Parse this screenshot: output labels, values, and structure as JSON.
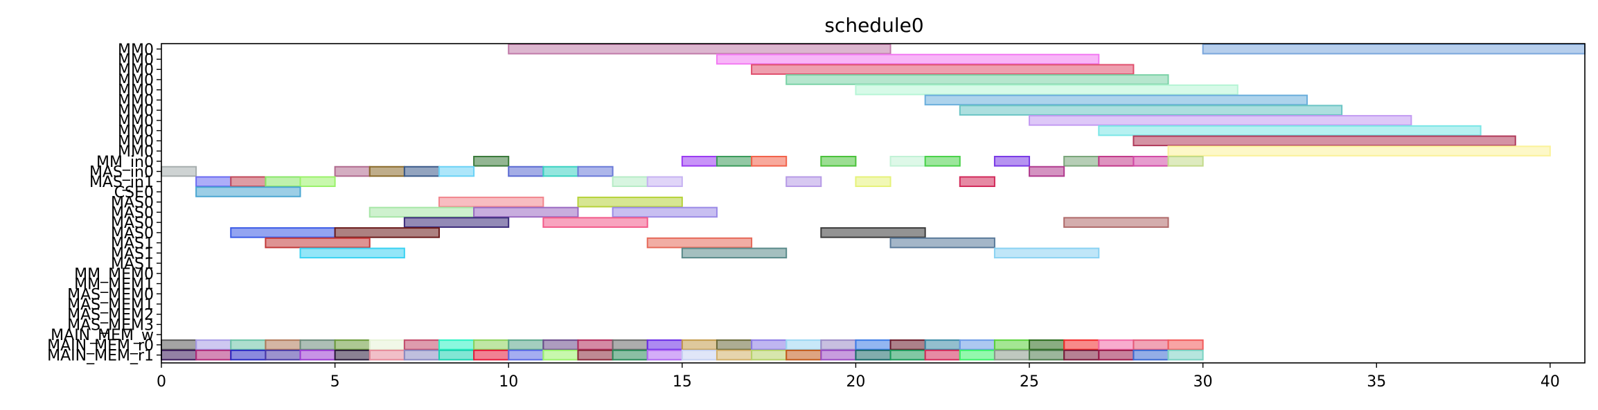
{
  "chart_data": {
    "type": "gantt",
    "title": "schedule0",
    "xlabel": "",
    "ylabel": "",
    "xlim": [
      0,
      41
    ],
    "x_ticks": [
      0,
      5,
      10,
      15,
      20,
      25,
      30,
      35,
      40
    ],
    "grid": false,
    "rows": [
      "MM0",
      "MM0",
      "MM0",
      "MM0",
      "MM0",
      "MM0",
      "MM0",
      "MM0",
      "MM0",
      "MM0",
      "MM0",
      "MM_in0",
      "MAS_in0",
      "MAS_in1",
      "CSE0",
      "MAS0",
      "MAS0",
      "MAS0",
      "MAS0",
      "MAS1",
      "MAS1",
      "MAS1",
      "MM_MEM0",
      "MM_MEM1",
      "MAS_MEM0",
      "MAS_MEM1",
      "MAS_MEM2",
      "MAS_MEM3",
      "MAIN_MEM_w",
      "MAIN_MEM_r0",
      "MAIN_MEM_r1"
    ],
    "tasks": [
      {
        "row": 0,
        "start": 10,
        "end": 21,
        "color": "#c07aa8"
      },
      {
        "row": 0,
        "start": 30,
        "end": 41,
        "color": "#7aa6dc"
      },
      {
        "row": 1,
        "start": 16,
        "end": 27,
        "color": "#f27af2"
      },
      {
        "row": 2,
        "start": 17,
        "end": 28,
        "color": "#e0506e"
      },
      {
        "row": 3,
        "start": 18,
        "end": 29,
        "color": "#7ad2a6"
      },
      {
        "row": 4,
        "start": 20,
        "end": 31,
        "color": "#b6f5d5"
      },
      {
        "row": 5,
        "start": 22,
        "end": 33,
        "color": "#6aaedc"
      },
      {
        "row": 6,
        "start": 23,
        "end": 34,
        "color": "#6ac4c4"
      },
      {
        "row": 7,
        "start": 25,
        "end": 36,
        "color": "#c39af2"
      },
      {
        "row": 8,
        "start": 27,
        "end": 38,
        "color": "#7ae6e6"
      },
      {
        "row": 9,
        "start": 28,
        "end": 39,
        "color": "#b03a5a"
      },
      {
        "row": 10,
        "start": 29,
        "end": 40,
        "color": "#fbf29a"
      },
      {
        "row": 11,
        "start": 9,
        "end": 10,
        "color": "#3a7a3a"
      },
      {
        "row": 11,
        "start": 15,
        "end": 16,
        "color": "#9a3af2"
      },
      {
        "row": 11,
        "start": 16,
        "end": 17,
        "color": "#3a9a5a"
      },
      {
        "row": 11,
        "start": 17,
        "end": 18,
        "color": "#f2624a"
      },
      {
        "row": 11,
        "start": 19,
        "end": 20,
        "color": "#4ac23a"
      },
      {
        "row": 11,
        "start": 21,
        "end": 22,
        "color": "#c2f2d6"
      },
      {
        "row": 11,
        "start": 22,
        "end": 23,
        "color": "#4ad24a"
      },
      {
        "row": 11,
        "start": 24,
        "end": 25,
        "color": "#7a3ae6"
      },
      {
        "row": 11,
        "start": 26,
        "end": 27,
        "color": "#7aa67a"
      },
      {
        "row": 11,
        "start": 27,
        "end": 28,
        "color": "#c23a8a"
      },
      {
        "row": 11,
        "start": 28,
        "end": 29,
        "color": "#d24aa6"
      },
      {
        "row": 11,
        "start": 29,
        "end": 30,
        "color": "#c2da8a"
      },
      {
        "row": 12,
        "start": 0,
        "end": 1,
        "color": "#a6aeae"
      },
      {
        "row": 12,
        "start": 5,
        "end": 6,
        "color": "#b06a8e"
      },
      {
        "row": 12,
        "start": 6,
        "end": 7,
        "color": "#8a6a2a"
      },
      {
        "row": 12,
        "start": 7,
        "end": 8,
        "color": "#3a5a8a"
      },
      {
        "row": 12,
        "start": 8,
        "end": 9,
        "color": "#6ad2f6"
      },
      {
        "row": 12,
        "start": 10,
        "end": 11,
        "color": "#5a6ad2"
      },
      {
        "row": 12,
        "start": 11,
        "end": 12,
        "color": "#3ad2c2"
      },
      {
        "row": 12,
        "start": 12,
        "end": 13,
        "color": "#6a7ad8"
      },
      {
        "row": 12,
        "start": 25,
        "end": 26,
        "color": "#b03a8e"
      },
      {
        "row": 13,
        "start": 1,
        "end": 2,
        "color": "#6a6af2"
      },
      {
        "row": 13,
        "start": 2,
        "end": 3,
        "color": "#c24a5a"
      },
      {
        "row": 13,
        "start": 3,
        "end": 4,
        "color": "#8ae66a"
      },
      {
        "row": 13,
        "start": 4,
        "end": 5,
        "color": "#9af26a"
      },
      {
        "row": 13,
        "start": 13,
        "end": 14,
        "color": "#b6ecc6"
      },
      {
        "row": 13,
        "start": 14,
        "end": 15,
        "color": "#c6b2f2"
      },
      {
        "row": 13,
        "start": 18,
        "end": 19,
        "color": "#b69ae6"
      },
      {
        "row": 13,
        "start": 20,
        "end": 21,
        "color": "#e6f27a"
      },
      {
        "row": 13,
        "start": 23,
        "end": 24,
        "color": "#d22a5a"
      },
      {
        "row": 14,
        "start": 1,
        "end": 4,
        "color": "#4aa6d2"
      },
      {
        "row": 15,
        "start": 8,
        "end": 11,
        "color": "#f2868e"
      },
      {
        "row": 15,
        "start": 12,
        "end": 15,
        "color": "#b6d23a"
      },
      {
        "row": 16,
        "start": 6,
        "end": 9,
        "color": "#a6e6a6"
      },
      {
        "row": 16,
        "start": 9,
        "end": 12,
        "color": "#9a6ac2"
      },
      {
        "row": 16,
        "start": 13,
        "end": 16,
        "color": "#9a8ae6"
      },
      {
        "row": 17,
        "start": 7,
        "end": 10,
        "color": "#3a2a7a"
      },
      {
        "row": 17,
        "start": 11,
        "end": 14,
        "color": "#f25a8a"
      },
      {
        "row": 17,
        "start": 26,
        "end": 29,
        "color": "#b06a6a"
      },
      {
        "row": 18,
        "start": 2,
        "end": 5,
        "color": "#3a5ae6"
      },
      {
        "row": 18,
        "start": 5,
        "end": 8,
        "color": "#6a1a1a"
      },
      {
        "row": 18,
        "start": 19,
        "end": 22,
        "color": "#3a3a3a"
      },
      {
        "row": 19,
        "start": 3,
        "end": 6,
        "color": "#c23a3a"
      },
      {
        "row": 19,
        "start": 14,
        "end": 17,
        "color": "#e66a5a"
      },
      {
        "row": 19,
        "start": 21,
        "end": 24,
        "color": "#5a7a9a"
      },
      {
        "row": 20,
        "start": 4,
        "end": 7,
        "color": "#3ad2f2"
      },
      {
        "row": 20,
        "start": 15,
        "end": 18,
        "color": "#5a8a8a"
      },
      {
        "row": 20,
        "start": 24,
        "end": 27,
        "color": "#8ad2f2"
      },
      {
        "row": 29,
        "start": 0,
        "end": 1,
        "color": "#5a5a5a"
      },
      {
        "row": 29,
        "start": 1,
        "end": 2,
        "color": "#a69ae6"
      },
      {
        "row": 29,
        "start": 2,
        "end": 3,
        "color": "#6ac2a6"
      },
      {
        "row": 29,
        "start": 3,
        "end": 4,
        "color": "#b07a5a"
      },
      {
        "row": 29,
        "start": 4,
        "end": 5,
        "color": "#6a8a7a"
      },
      {
        "row": 29,
        "start": 5,
        "end": 6,
        "color": "#6a9a3a"
      },
      {
        "row": 29,
        "start": 6,
        "end": 7,
        "color": "#e6f2d6"
      },
      {
        "row": 29,
        "start": 7,
        "end": 8,
        "color": "#c24a6a"
      },
      {
        "row": 29,
        "start": 8,
        "end": 9,
        "color": "#2af2c2"
      },
      {
        "row": 29,
        "start": 9,
        "end": 10,
        "color": "#8ad25a"
      },
      {
        "row": 29,
        "start": 10,
        "end": 11,
        "color": "#5aa68a"
      },
      {
        "row": 29,
        "start": 11,
        "end": 12,
        "color": "#6a4a8a"
      },
      {
        "row": 29,
        "start": 12,
        "end": 13,
        "color": "#b02a5a"
      },
      {
        "row": 29,
        "start": 13,
        "end": 14,
        "color": "#6a6a6a"
      },
      {
        "row": 29,
        "start": 14,
        "end": 15,
        "color": "#6a2ae6"
      },
      {
        "row": 29,
        "start": 15,
        "end": 16,
        "color": "#c29a4a"
      },
      {
        "row": 29,
        "start": 16,
        "end": 17,
        "color": "#6a6a3a"
      },
      {
        "row": 29,
        "start": 17,
        "end": 18,
        "color": "#8a7ae6"
      },
      {
        "row": 29,
        "start": 18,
        "end": 19,
        "color": "#9ad6f2"
      },
      {
        "row": 29,
        "start": 19,
        "end": 20,
        "color": "#9a8ac6"
      },
      {
        "row": 29,
        "start": 20,
        "end": 21,
        "color": "#3a7ae6"
      },
      {
        "row": 29,
        "start": 21,
        "end": 22,
        "color": "#6a1a2a"
      },
      {
        "row": 29,
        "start": 22,
        "end": 23,
        "color": "#3a8aa6"
      },
      {
        "row": 29,
        "start": 23,
        "end": 24,
        "color": "#6a9ae6"
      },
      {
        "row": 29,
        "start": 24,
        "end": 25,
        "color": "#5ad23a"
      },
      {
        "row": 29,
        "start": 25,
        "end": 26,
        "color": "#2a6a1a"
      },
      {
        "row": 29,
        "start": 26,
        "end": 27,
        "color": "#f22a2a"
      },
      {
        "row": 29,
        "start": 27,
        "end": 28,
        "color": "#f26aa6"
      },
      {
        "row": 29,
        "start": 28,
        "end": 29,
        "color": "#e65a7a"
      },
      {
        "row": 29,
        "start": 29,
        "end": 30,
        "color": "#f25a5a"
      },
      {
        "row": 30,
        "start": 0,
        "end": 1,
        "color": "#3a1a5a"
      },
      {
        "row": 30,
        "start": 1,
        "end": 2,
        "color": "#b02a7a"
      },
      {
        "row": 30,
        "start": 2,
        "end": 3,
        "color": "#2a2ac2"
      },
      {
        "row": 30,
        "start": 3,
        "end": 4,
        "color": "#4a3aa6"
      },
      {
        "row": 30,
        "start": 4,
        "end": 5,
        "color": "#9a3ad2"
      },
      {
        "row": 30,
        "start": 5,
        "end": 6,
        "color": "#2a1a3a"
      },
      {
        "row": 30,
        "start": 6,
        "end": 7,
        "color": "#e68a9a"
      },
      {
        "row": 30,
        "start": 7,
        "end": 8,
        "color": "#8a8ac2"
      },
      {
        "row": 30,
        "start": 8,
        "end": 9,
        "color": "#1ad2b0"
      },
      {
        "row": 30,
        "start": 9,
        "end": 10,
        "color": "#e61a3a"
      },
      {
        "row": 30,
        "start": 10,
        "end": 11,
        "color": "#5a6ae6"
      },
      {
        "row": 30,
        "start": 11,
        "end": 12,
        "color": "#9af26a"
      },
      {
        "row": 30,
        "start": 12,
        "end": 13,
        "color": "#8a2a3a"
      },
      {
        "row": 30,
        "start": 13,
        "end": 14,
        "color": "#2a8a5a"
      },
      {
        "row": 30,
        "start": 14,
        "end": 15,
        "color": "#b06af2"
      },
      {
        "row": 30,
        "start": 15,
        "end": 16,
        "color": "#c6d2f2"
      },
      {
        "row": 30,
        "start": 16,
        "end": 17,
        "color": "#d2b06a"
      },
      {
        "row": 30,
        "start": 17,
        "end": 18,
        "color": "#b6d26a"
      },
      {
        "row": 30,
        "start": 18,
        "end": 19,
        "color": "#c25a1a"
      },
      {
        "row": 30,
        "start": 19,
        "end": 20,
        "color": "#9a4ac2"
      },
      {
        "row": 30,
        "start": 20,
        "end": 21,
        "color": "#1a6a6a"
      },
      {
        "row": 30,
        "start": 21,
        "end": 22,
        "color": "#1a9a5a"
      },
      {
        "row": 30,
        "start": 22,
        "end": 23,
        "color": "#d22a5a"
      },
      {
        "row": 30,
        "start": 23,
        "end": 24,
        "color": "#3af26a"
      },
      {
        "row": 30,
        "start": 24,
        "end": 25,
        "color": "#8a9a8a"
      },
      {
        "row": 30,
        "start": 25,
        "end": 26,
        "color": "#4a7a4a"
      },
      {
        "row": 30,
        "start": 26,
        "end": 27,
        "color": "#7a1a3a"
      },
      {
        "row": 30,
        "start": 27,
        "end": 28,
        "color": "#9a1a4a"
      },
      {
        "row": 30,
        "start": 28,
        "end": 29,
        "color": "#3a6ad2"
      },
      {
        "row": 30,
        "start": 29,
        "end": 30,
        "color": "#7ad2c2"
      }
    ]
  }
}
